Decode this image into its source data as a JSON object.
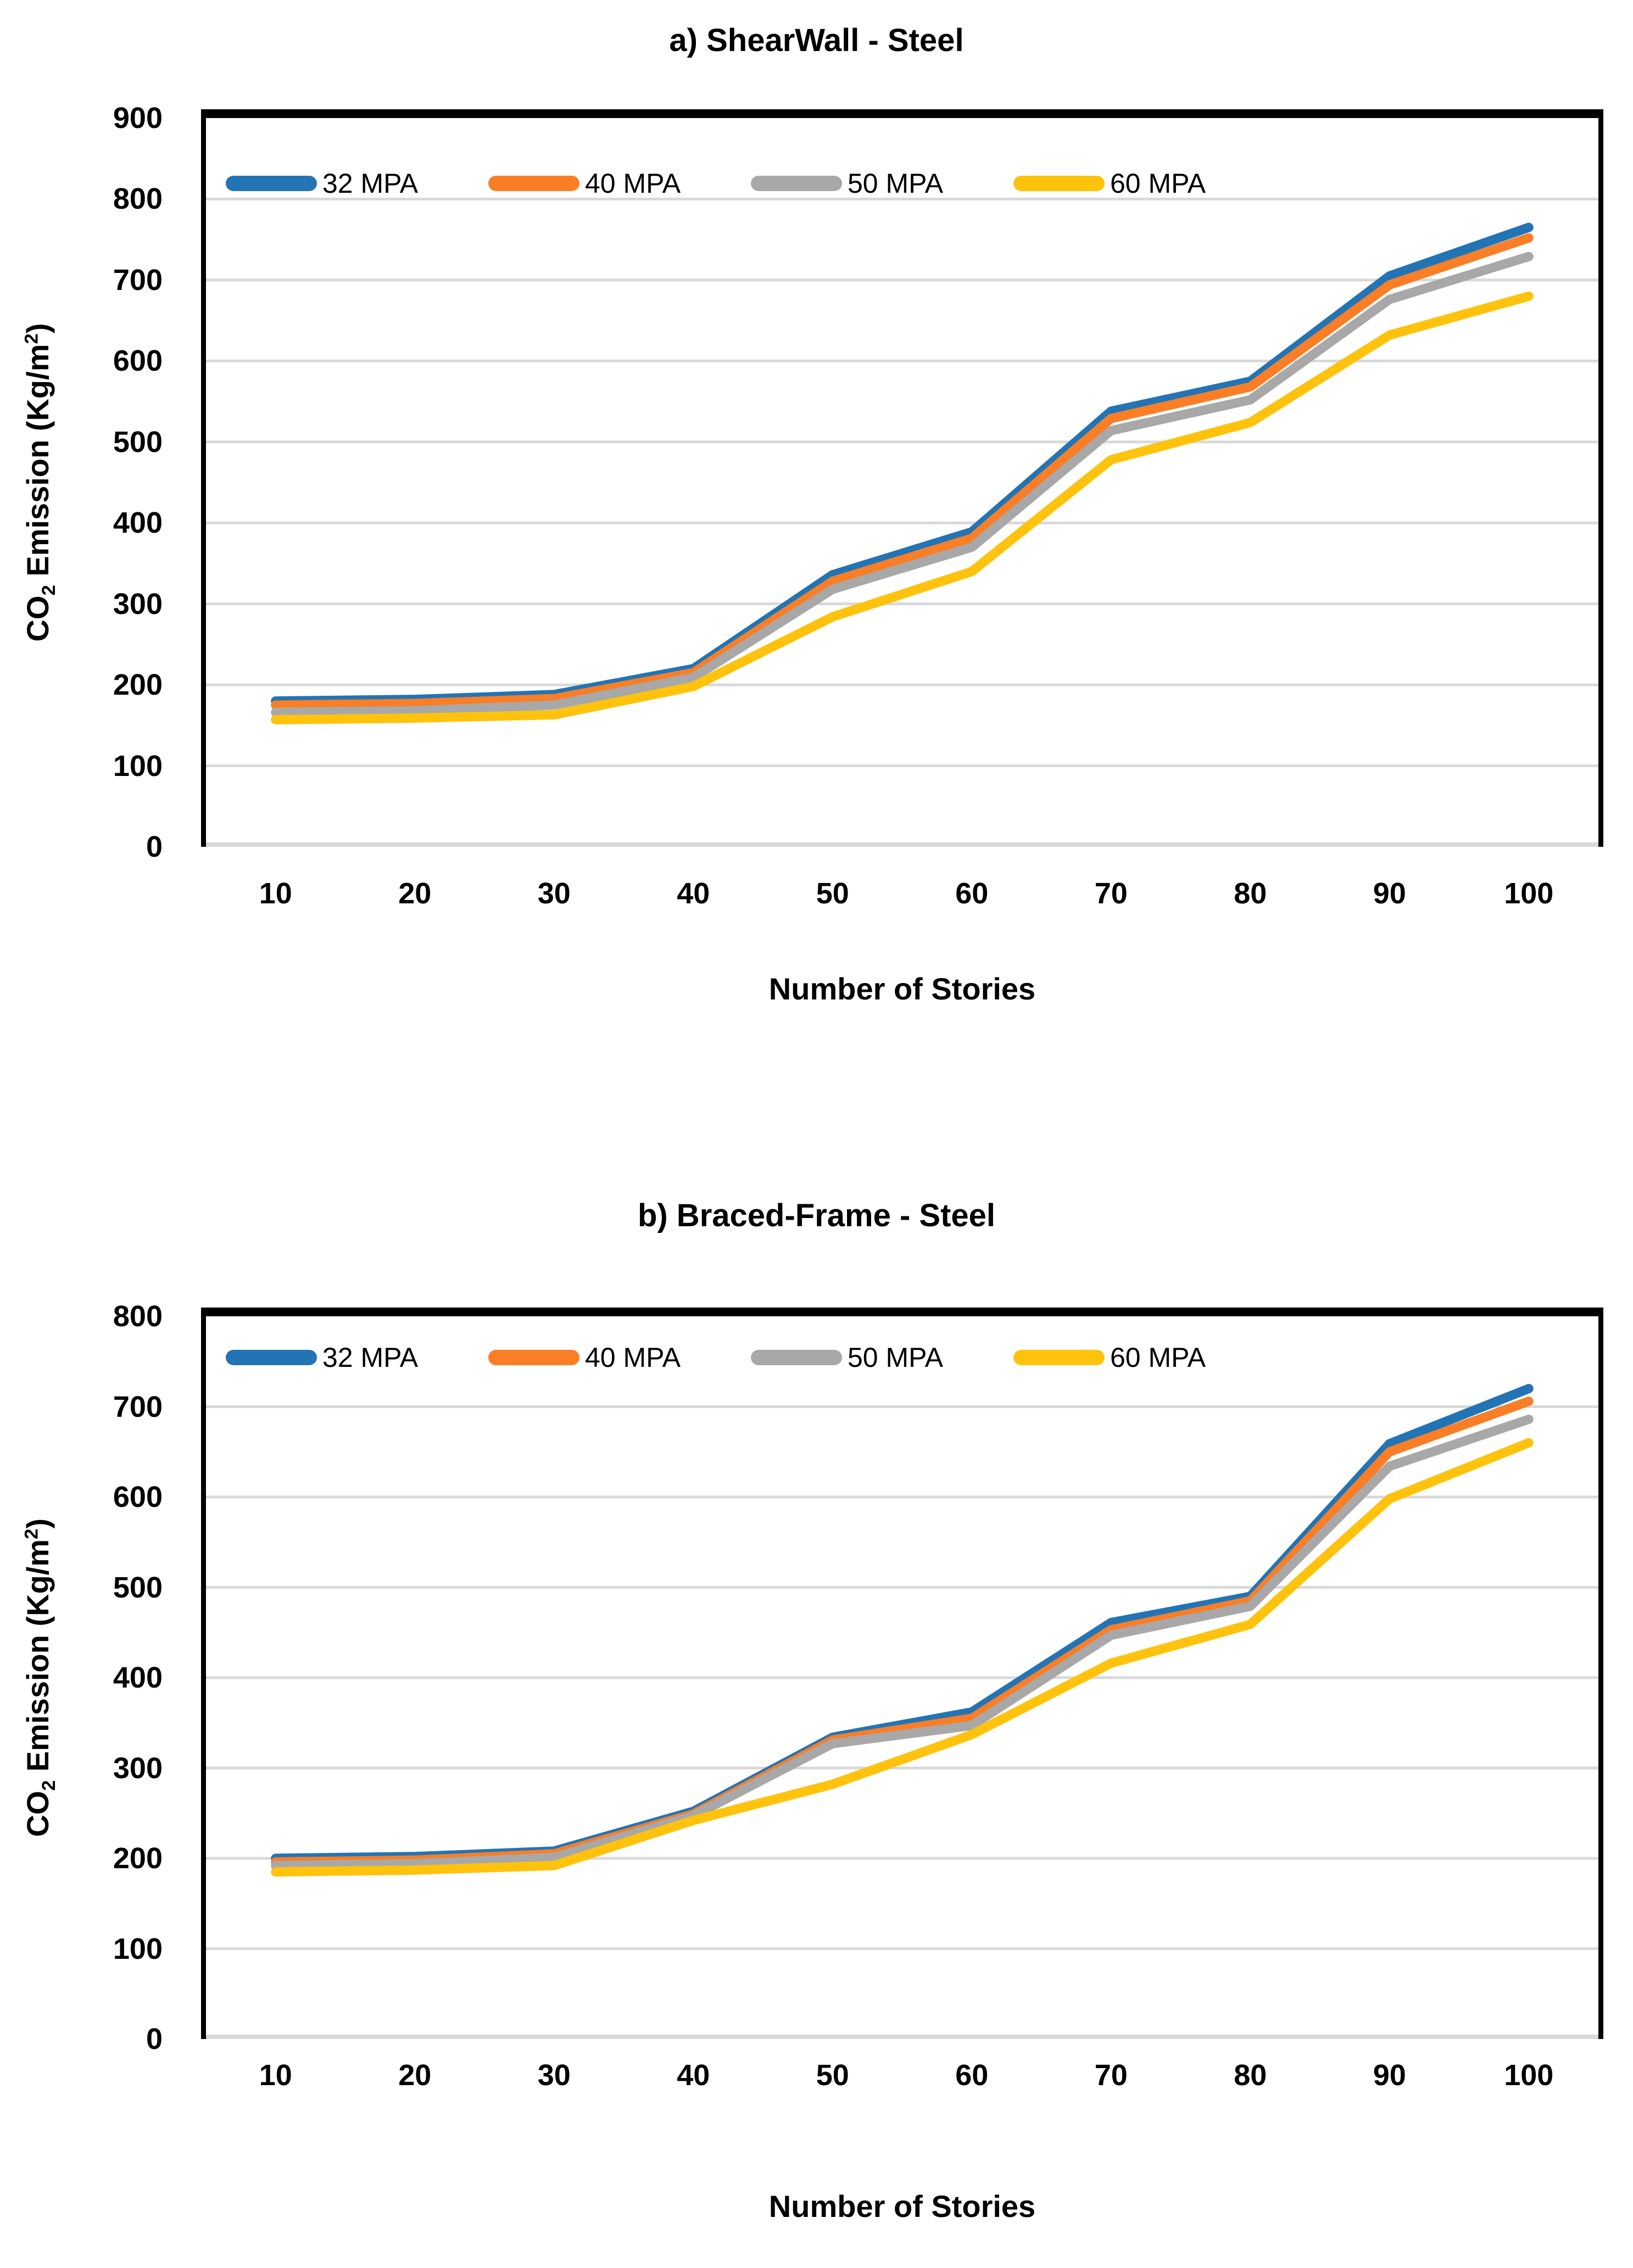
{
  "page": {
    "background": "#FFFFFF"
  },
  "chart_data": [
    {
      "type": "line",
      "panel_label": "a",
      "title": "a) ShearWall - Steel",
      "xlabel": "Number of Stories",
      "ylabel": "CO2 Emission (Kg/m2)",
      "ylabel_parts": {
        "pre": "CO",
        "sub": "2",
        "mid": " Emission (Kg/m",
        "sup": "2",
        "post": ")"
      },
      "categories": [
        10,
        20,
        30,
        40,
        50,
        60,
        70,
        80,
        90,
        100
      ],
      "xtick_labels": [
        "10",
        "20",
        "30",
        "40",
        "50",
        "60",
        "70",
        "80",
        "90",
        "100"
      ],
      "ylim": [
        0,
        900
      ],
      "ytick_step": 100,
      "ytick_labels": [
        "900",
        "800",
        "700",
        "600",
        "500",
        "400",
        "300",
        "200",
        "100",
        "0"
      ],
      "grid": true,
      "gridline_color": "#D9D9D9",
      "axis_line_color": "#000000",
      "legend_position": "top-left-inside",
      "series": [
        {
          "name": "32 MPA",
          "color": "#2274B5",
          "values": [
            180,
            182,
            188,
            220,
            336,
            389,
            538,
            575,
            705,
            765
          ]
        },
        {
          "name": "40 MPA",
          "color": "#F97E26",
          "values": [
            175,
            177,
            183,
            215,
            328,
            381,
            529,
            568,
            694,
            752
          ]
        },
        {
          "name": "50 MPA",
          "color": "#A8A8A8",
          "values": [
            166,
            168,
            175,
            209,
            318,
            370,
            514,
            552,
            676,
            729
          ]
        },
        {
          "name": "60 MPA",
          "color": "#FFC20D",
          "values": [
            157,
            159,
            163,
            198,
            284,
            340,
            478,
            524,
            632,
            680
          ]
        }
      ]
    },
    {
      "type": "line",
      "panel_label": "b",
      "title": "b) Braced-Frame - Steel",
      "xlabel": "Number of Stories",
      "ylabel": "CO2 Emission (Kg/m2)",
      "ylabel_parts": {
        "pre": "CO",
        "sub": "2",
        "mid": " Emission (Kg/m",
        "sup": "2",
        "post": ")"
      },
      "categories": [
        10,
        20,
        30,
        40,
        50,
        60,
        70,
        80,
        90,
        100
      ],
      "xtick_labels": [
        "10",
        "20",
        "30",
        "40",
        "50",
        "60",
        "70",
        "80",
        "90",
        "100"
      ],
      "ylim": [
        0,
        800
      ],
      "ytick_step": 100,
      "ytick_labels": [
        "800",
        "700",
        "600",
        "500",
        "400",
        "300",
        "200",
        "100",
        "0"
      ],
      "grid": true,
      "gridline_color": "#D9D9D9",
      "axis_line_color": "#000000",
      "legend_position": "top-left-inside",
      "series": [
        {
          "name": "32 MPA",
          "color": "#2274B5",
          "values": [
            200,
            202,
            208,
            252,
            334,
            362,
            461,
            490,
            659,
            720
          ]
        },
        {
          "name": "40 MPA",
          "color": "#F97E26",
          "values": [
            196,
            198,
            205,
            249,
            331,
            355,
            453,
            485,
            650,
            706
          ]
        },
        {
          "name": "50 MPA",
          "color": "#A8A8A8",
          "values": [
            192,
            194,
            201,
            247,
            327,
            347,
            447,
            479,
            634,
            686
          ]
        },
        {
          "name": "60 MPA",
          "color": "#FFC20D",
          "values": [
            185,
            187,
            192,
            242,
            282,
            337,
            416,
            459,
            598,
            660
          ]
        }
      ]
    }
  ]
}
